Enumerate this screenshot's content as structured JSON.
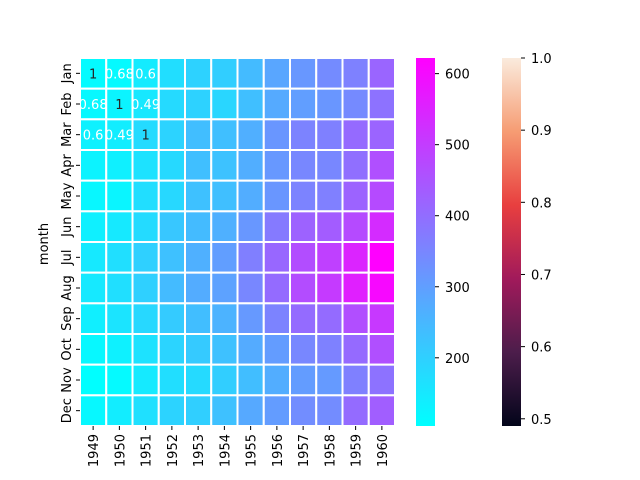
{
  "chart_data": {
    "type": "heatmap",
    "ylabel": "month",
    "xlabel": "",
    "x_categories": [
      "1949",
      "1950",
      "1951",
      "1952",
      "1953",
      "1954",
      "1955",
      "1956",
      "1957",
      "1958",
      "1959",
      "1960"
    ],
    "y_categories": [
      "Jan",
      "Feb",
      "Mar",
      "Apr",
      "May",
      "Jun",
      "Jul",
      "Aug",
      "Sep",
      "Oct",
      "Nov",
      "Dec"
    ],
    "values": [
      [
        112,
        115,
        145,
        171,
        196,
        204,
        242,
        284,
        315,
        340,
        360,
        417
      ],
      [
        118,
        126,
        150,
        180,
        196,
        188,
        233,
        277,
        301,
        318,
        342,
        391
      ],
      [
        132,
        141,
        178,
        193,
        236,
        235,
        267,
        317,
        356,
        362,
        406,
        419
      ],
      [
        129,
        135,
        163,
        181,
        235,
        227,
        269,
        313,
        348,
        348,
        396,
        461
      ],
      [
        121,
        125,
        172,
        183,
        229,
        234,
        270,
        318,
        355,
        363,
        420,
        472
      ],
      [
        135,
        149,
        178,
        218,
        243,
        264,
        315,
        374,
        422,
        435,
        472,
        535
      ],
      [
        148,
        170,
        199,
        230,
        264,
        302,
        364,
        413,
        465,
        491,
        548,
        622
      ],
      [
        148,
        170,
        199,
        242,
        272,
        293,
        347,
        405,
        467,
        505,
        559,
        606
      ],
      [
        136,
        158,
        184,
        209,
        237,
        259,
        312,
        355,
        404,
        404,
        463,
        508
      ],
      [
        119,
        133,
        162,
        191,
        211,
        229,
        274,
        306,
        347,
        359,
        407,
        461
      ],
      [
        104,
        114,
        146,
        172,
        180,
        203,
        237,
        271,
        305,
        310,
        362,
        390
      ],
      [
        118,
        140,
        166,
        194,
        201,
        229,
        278,
        306,
        336,
        337,
        405,
        432
      ]
    ],
    "colormap": "cool",
    "vmin": 104,
    "vmax": 622,
    "colorbar_ticks": [
      200,
      300,
      400,
      500,
      600
    ],
    "overlay": {
      "colormap": "rocket",
      "vmin": 0.49,
      "vmax": 1.0,
      "colorbar_ticks": [
        "0.5",
        "0.6",
        "0.7",
        "0.8",
        "0.9",
        "1.0"
      ],
      "annotations": [
        [
          "1",
          "0.68",
          "0.6"
        ],
        [
          "0.68",
          "1",
          "0.49"
        ],
        [
          "0.6",
          "0.49",
          "1"
        ]
      ]
    },
    "grid": true
  }
}
